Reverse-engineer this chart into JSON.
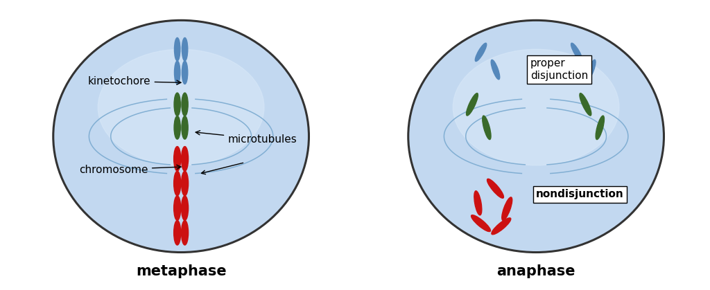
{
  "bg_color": "#ffffff",
  "cell_fill": "#c2d8f0",
  "cell_edge": "#333333",
  "line_color": "#7aaad0",
  "blue_chrom": "#5588bb",
  "green_chrom": "#3a6a2a",
  "red_chrom": "#cc1111",
  "label_metaphase": "metaphase",
  "label_anaphase": "anaphase",
  "label_kinetochore": "kinetochore",
  "label_chromosome": "chromosome",
  "label_microtubules": "microtubules",
  "label_proper": "proper\ndisjunction",
  "label_nondisjunction": "nondisjunction",
  "title_fontsize": 15,
  "label_fontsize": 11
}
